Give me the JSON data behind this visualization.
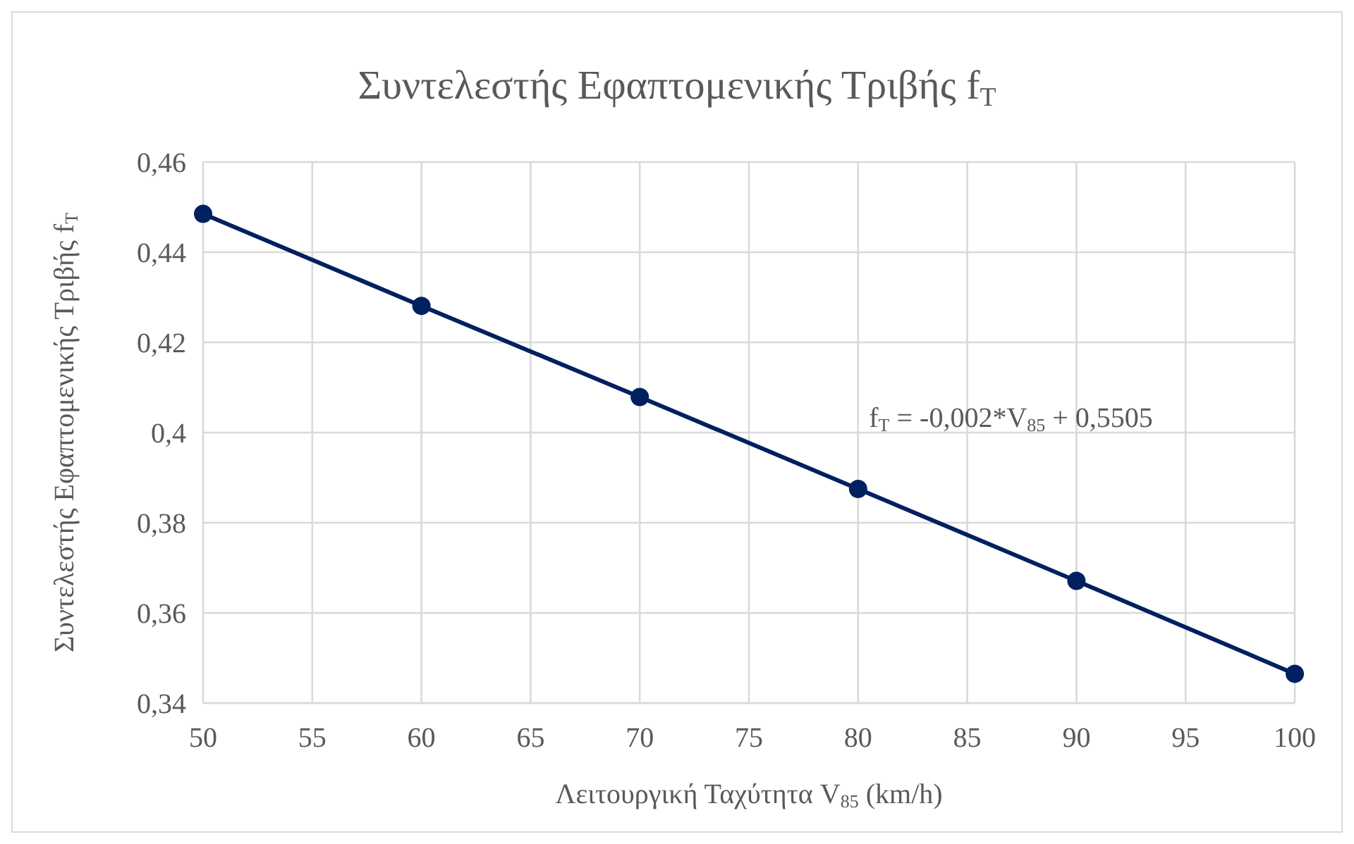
{
  "chart_data": {
    "type": "line",
    "title": "Συντελεστής Εφαπτομενικής Τριβής f$_{T}$",
    "xlabel": "Λειτουργική Ταχύτητα V$_{85}$ (km/h)",
    "ylabel": "Συντελεστής Εφαπτομενικής Τριβής f$_{T}$",
    "x": [
      50,
      60,
      70,
      80,
      90,
      100
    ],
    "series": [
      {
        "color": "#002060",
        "values": [
          0.4485,
          0.4281,
          0.4079,
          0.3875,
          0.3671,
          0.3465
        ]
      }
    ],
    "xlim": [
      50,
      100
    ],
    "xticks": [
      50,
      55,
      60,
      65,
      70,
      75,
      80,
      85,
      90,
      95,
      100
    ],
    "ylim": [
      0.34,
      0.46
    ],
    "yticks": [
      {
        "value": 0.34,
        "label": "0,34"
      },
      {
        "value": 0.36,
        "label": "0,36"
      },
      {
        "value": 0.38,
        "label": "0,38"
      },
      {
        "value": 0.4,
        "label": "0,4"
      },
      {
        "value": 0.42,
        "label": "0,42"
      },
      {
        "value": 0.44,
        "label": "0,44"
      },
      {
        "value": 0.46,
        "label": "0,46"
      }
    ],
    "grid": true,
    "marker": "circle",
    "line_style": "solid",
    "annotations": [
      "f$_{T}$ = -0,002*V$_{85}$ + 0,5505"
    ]
  }
}
